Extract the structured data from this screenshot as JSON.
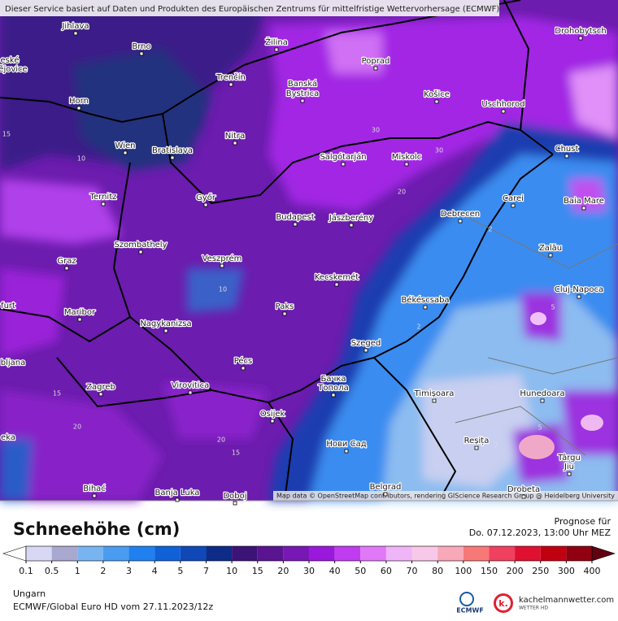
{
  "header": {
    "service_note": "Dieser Service basiert auf Daten und Produkten des Europäischen Zentrums für mittelfristige Wettervorhersage (ECMWF)"
  },
  "map": {
    "attribution": "Map data © OpenStreetMap contributors, rendering GIScience Research Group @ Heidelberg University",
    "cities": [
      "Jihlava",
      "Brno",
      "Žilina",
      "Poprad",
      "Drohobytsch",
      "Trenčín",
      "Banská",
      "Bystrica",
      "Košice",
      "Uschhorod",
      "Horn",
      "Nitra",
      "Wien",
      "Bratislava",
      "Salgótarján",
      "Miskolc",
      "Chust",
      "Ternitz",
      "Győr",
      "Carei",
      "Baia Mare",
      "Budapest",
      "Jászberény",
      "Debrecen",
      "Szombathely",
      "Zalău",
      "Graz",
      "Veszprém",
      "Kecskemét",
      "Cluj-Napoca",
      "Békéscsaba",
      "Maribor",
      "Paks",
      "Nagykanizsa",
      "Szeged",
      "Pécs",
      "Бачка",
      "Топола",
      "Zagreb",
      "Virovitica",
      "Timișoara",
      "Hunedoara",
      "Osijek",
      "Reșița",
      "Нови Сад",
      "Târgu",
      "Jiu",
      "Belgrad",
      "Bihać",
      "Banja Luka",
      "Doboj",
      "Drobeta",
      "eské",
      "ějovice",
      "furt",
      "bljana",
      "eka"
    ],
    "contour_labels": [
      "15",
      "10",
      "30",
      "30",
      "20",
      "10",
      "2",
      "2",
      "5",
      "15",
      "20",
      "20",
      "15",
      "2",
      "5"
    ]
  },
  "legend": {
    "title": "Schneehöhe (cm)",
    "ticks": [
      0.1,
      0.5,
      1,
      2,
      3,
      4,
      5,
      7,
      10,
      15,
      20,
      30,
      40,
      50,
      60,
      70,
      80,
      100,
      150,
      200,
      250,
      300,
      400
    ],
    "colors": [
      "#d8d8f4",
      "#a8a8d0",
      "#78b4f0",
      "#4a9cf0",
      "#2080f0",
      "#1060d8",
      "#1048b8",
      "#0c2c88",
      "#3c1478",
      "#5a1490",
      "#7818b4",
      "#9a18dc",
      "#c03cf0",
      "#e078f8",
      "#f0b4f8",
      "#f8c8e8",
      "#f8a8b8",
      "#f87878",
      "#f04060",
      "#e01030",
      "#c00010",
      "#900010"
    ],
    "under_color": "#ffffff",
    "over_color": "#600010"
  },
  "forecast": {
    "label": "Prognose für",
    "time": "Do. 07.12.2023, 13:00 Uhr MEZ"
  },
  "footer": {
    "region": "Ungarn",
    "model_run": "ECMWF/Global Euro HD vom  27.11.2023/12z",
    "logo_ecmwf": "ECMWF",
    "logo_site": "kachelmannwetter.com",
    "logo_sub": "WETTER HD"
  }
}
